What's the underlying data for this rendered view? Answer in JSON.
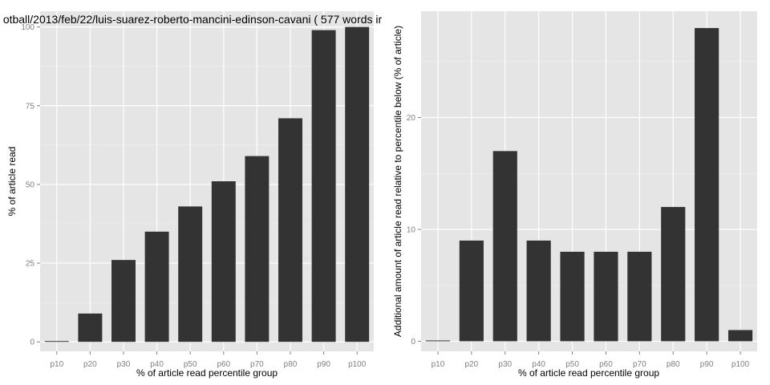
{
  "chart_data": [
    {
      "type": "bar",
      "title": "otball/2013/feb/22/luis-suarez-roberto-mancini-edinson-cavani ( 577 words ir",
      "xlabel": "% of article read percentile group",
      "ylabel": "% of article read",
      "categories": [
        "p10",
        "p20",
        "p30",
        "p40",
        "p50",
        "p60",
        "p70",
        "p80",
        "p90",
        "p100"
      ],
      "values": [
        0,
        9,
        26,
        35,
        43,
        51,
        59,
        71,
        99,
        100
      ],
      "ylim": [
        -3,
        105
      ],
      "yticks": [
        0,
        25,
        50,
        75,
        100
      ],
      "ytick_labels": [
        "0",
        "25",
        "50",
        "75",
        "100"
      ],
      "grid": true
    },
    {
      "type": "bar",
      "title": "",
      "xlabel": "% of article read percentile group",
      "ylabel": "Additional amount of article read relative to percentile below (% of article)",
      "categories": [
        "p10",
        "p20",
        "p30",
        "p40",
        "p50",
        "p60",
        "p70",
        "p80",
        "p90",
        "p100"
      ],
      "values": [
        0,
        9,
        17,
        9,
        8,
        8,
        8,
        12,
        28,
        1
      ],
      "ylim": [
        -0.9,
        29.5
      ],
      "yticks": [
        0,
        10,
        20
      ],
      "ytick_labels": [
        "0",
        "10",
        "20"
      ],
      "grid": true
    }
  ]
}
